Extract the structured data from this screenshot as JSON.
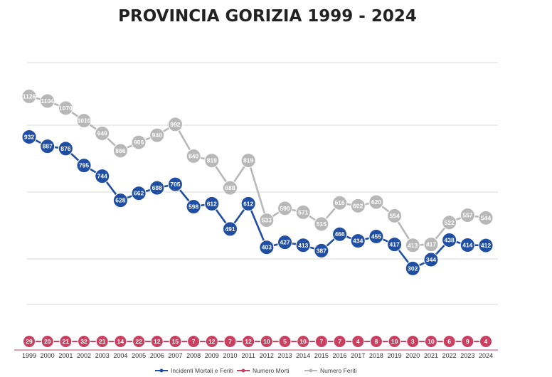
{
  "chart_data": {
    "type": "line",
    "title": "PROVINCIA GORIZIA 1999 - 2024",
    "xlabel": "",
    "ylabel": "",
    "categories": [
      "1999",
      "2000",
      "2001",
      "2002",
      "2003",
      "2004",
      "2005",
      "2006",
      "2007",
      "2008",
      "2009",
      "2010",
      "2011",
      "2012",
      "2013",
      "2014",
      "2015",
      "2016",
      "2017",
      "2018",
      "2019",
      "2020",
      "2021",
      "2022",
      "2023",
      "2024"
    ],
    "ylim": [
      0,
      1200
    ],
    "grid": true,
    "legend_position": "bottom",
    "series": [
      {
        "name": "Incidenti Mortali e Feriti",
        "color": "#1f4ea3",
        "values": [
          932,
          887,
          876,
          795,
          744,
          628,
          662,
          688,
          705,
          598,
          612,
          491,
          612,
          403,
          427,
          413,
          387,
          466,
          434,
          455,
          417,
          302,
          344,
          438,
          414,
          412
        ]
      },
      {
        "name": "Numero Morti",
        "color": "#c94060",
        "values": [
          29,
          20,
          21,
          32,
          21,
          14,
          22,
          12,
          15,
          7,
          12,
          7,
          12,
          10,
          5,
          10,
          7,
          7,
          4,
          8,
          10,
          3,
          10,
          6,
          9,
          4
        ]
      },
      {
        "name": "Numero Feriti",
        "color": "#b8b8b8",
        "values": [
          1126,
          1104,
          1070,
          1010,
          949,
          866,
          906,
          940,
          992,
          840,
          819,
          688,
          819,
          533,
          590,
          571,
          515,
          616,
          602,
          620,
          554,
          413,
          417,
          522,
          557,
          544
        ]
      }
    ]
  }
}
